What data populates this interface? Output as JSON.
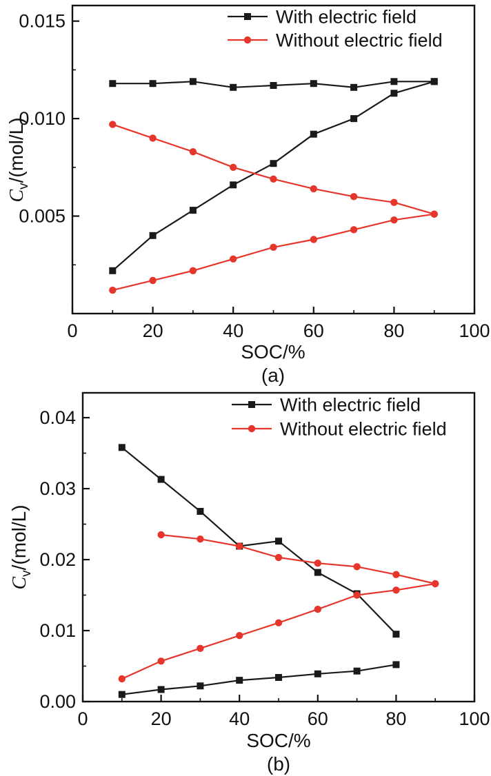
{
  "colors": {
    "black": "#1a1a1a",
    "red": "#e6352b"
  },
  "chart_data": [
    {
      "id": "a",
      "type": "line",
      "title": "",
      "xlabel": "SOC/%",
      "ylabel_c": "C",
      "ylabel_sub": "v",
      "ylabel_rest": "/(mol/L)",
      "caption": "(a)",
      "xlim": [
        0,
        100
      ],
      "ylim": [
        0,
        0.0158
      ],
      "xticks": [
        0,
        20,
        40,
        60,
        80,
        100
      ],
      "x_minor_step": 10,
      "yticks": [
        0.005,
        0.01,
        0.015
      ],
      "ytick_labels": [
        "0.005",
        "0.010",
        "0.015"
      ],
      "y_minor_step": 0.0025,
      "grid": false,
      "legend_position": "top-inside",
      "legend": [
        {
          "label": "With electric field",
          "color": "black",
          "marker": "square"
        },
        {
          "label": "Without electric field",
          "color": "red",
          "marker": "circle"
        }
      ],
      "series": [
        {
          "name": "with-electric-field-upper",
          "color": "black",
          "marker": "square",
          "x": [
            10,
            20,
            30,
            40,
            50,
            60,
            70,
            80,
            90
          ],
          "y": [
            0.0118,
            0.0118,
            0.0119,
            0.0116,
            0.0117,
            0.0118,
            0.0116,
            0.0119,
            0.0119
          ]
        },
        {
          "name": "with-electric-field-lower",
          "color": "black",
          "marker": "square",
          "x": [
            10,
            20,
            30,
            40,
            50,
            60,
            70,
            80,
            90
          ],
          "y": [
            0.0022,
            0.004,
            0.0053,
            0.0066,
            0.0077,
            0.0092,
            0.01,
            0.0113,
            0.0119
          ]
        },
        {
          "name": "without-electric-field-upper",
          "color": "red",
          "marker": "circle",
          "x": [
            10,
            20,
            30,
            40,
            50,
            60,
            70,
            80,
            90
          ],
          "y": [
            0.0097,
            0.009,
            0.0083,
            0.0075,
            0.0069,
            0.0064,
            0.006,
            0.0057,
            0.0051
          ]
        },
        {
          "name": "without-electric-field-lower",
          "color": "red",
          "marker": "circle",
          "x": [
            10,
            20,
            30,
            40,
            50,
            60,
            70,
            80,
            90
          ],
          "y": [
            0.0012,
            0.0017,
            0.0022,
            0.0028,
            0.0034,
            0.0038,
            0.0043,
            0.0048,
            0.0051
          ]
        }
      ]
    },
    {
      "id": "b",
      "type": "line",
      "title": "",
      "xlabel": "SOC/%",
      "ylabel_c": "C",
      "ylabel_sub": "v",
      "ylabel_rest": "/(mol/L)",
      "caption": "(b)",
      "xlim": [
        0,
        100
      ],
      "ylim": [
        0,
        0.0435
      ],
      "xticks": [
        0,
        20,
        40,
        60,
        80,
        100
      ],
      "x_minor_step": 10,
      "yticks": [
        0,
        0.01,
        0.02,
        0.03,
        0.04
      ],
      "ytick_labels": [
        "0.00",
        "0.01",
        "0.02",
        "0.03",
        "0.04"
      ],
      "y_minor_step": 0.005,
      "grid": false,
      "legend_position": "top-inside",
      "legend": [
        {
          "label": "With electric field",
          "color": "black",
          "marker": "square"
        },
        {
          "label": "Without electric field",
          "color": "red",
          "marker": "circle"
        }
      ],
      "series": [
        {
          "name": "with-electric-field-upper",
          "color": "black",
          "marker": "square",
          "x": [
            10,
            20,
            30,
            40,
            50,
            60,
            70,
            80
          ],
          "y": [
            0.0358,
            0.0313,
            0.0268,
            0.0219,
            0.0226,
            0.0182,
            0.0152,
            0.0095
          ]
        },
        {
          "name": "with-electric-field-lower",
          "color": "black",
          "marker": "square",
          "x": [
            10,
            20,
            30,
            40,
            50,
            60,
            70,
            80
          ],
          "y": [
            0.001,
            0.0017,
            0.0022,
            0.003,
            0.0034,
            0.0039,
            0.0043,
            0.0052
          ]
        },
        {
          "name": "without-electric-field-upper",
          "color": "red",
          "marker": "circle",
          "x": [
            20,
            30,
            40,
            50,
            60,
            70,
            80,
            90
          ],
          "y": [
            0.0235,
            0.0229,
            0.0219,
            0.0203,
            0.0195,
            0.019,
            0.0179,
            0.0166
          ]
        },
        {
          "name": "without-electric-field-lower",
          "color": "red",
          "marker": "circle",
          "x": [
            10,
            20,
            30,
            40,
            50,
            60,
            70,
            80,
            90
          ],
          "y": [
            0.0032,
            0.0057,
            0.0075,
            0.0093,
            0.0111,
            0.013,
            0.015,
            0.0157,
            0.0166
          ]
        }
      ]
    }
  ]
}
